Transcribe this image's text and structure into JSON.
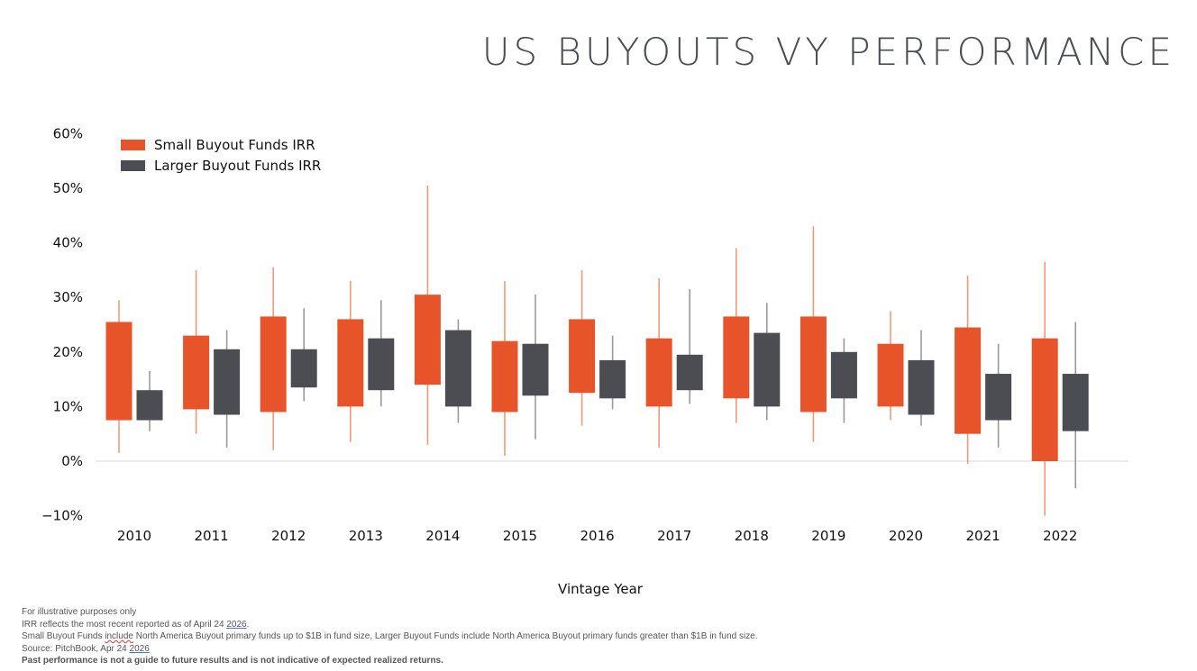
{
  "title": "US BUYOUTS VY PERFORMANCE",
  "colors": {
    "small": "#e8542a",
    "small_whisker": "#f09a7c",
    "large": "#4b4d52",
    "large_whisker": "#9a9a9a",
    "zero_line": "#d9d9d9"
  },
  "chart_data": {
    "type": "box",
    "xlabel": "Vintage Year",
    "ylabel": "",
    "ylim": [
      -10,
      60
    ],
    "yticks": [
      "−10%",
      "0%",
      "10%",
      "20%",
      "30%",
      "40%",
      "50%",
      "60%"
    ],
    "ytick_values": [
      -10,
      0,
      10,
      20,
      30,
      40,
      50,
      60
    ],
    "legend_position": "top-left",
    "categories": [
      "2010",
      "2011",
      "2012",
      "2013",
      "2014",
      "2015",
      "2016",
      "2017",
      "2018",
      "2019",
      "2020",
      "2021",
      "2022"
    ],
    "series": [
      {
        "name": "Small Buyout Funds IRR",
        "color_key": "small",
        "whisker_color_key": "small_whisker",
        "min": [
          1.5,
          5,
          2,
          3.5,
          3,
          1,
          6.5,
          2.5,
          7,
          3.5,
          7.5,
          -0.5,
          -10
        ],
        "box_low": [
          7.5,
          9.5,
          9,
          10,
          14,
          9,
          12.5,
          10,
          11.5,
          9,
          10,
          5,
          0
        ],
        "box_high": [
          25.5,
          23,
          26.5,
          26,
          30.5,
          22,
          26,
          22.5,
          26.5,
          26.5,
          21.5,
          24.5,
          22.5
        ],
        "max": [
          29.5,
          35,
          35.5,
          33,
          50.5,
          33,
          35,
          33.5,
          39,
          43,
          27.5,
          34,
          36.5
        ]
      },
      {
        "name": "Larger Buyout Funds IRR",
        "color_key": "large",
        "whisker_color_key": "large_whisker",
        "min": [
          5.5,
          2.5,
          11,
          10,
          7,
          4,
          9.5,
          10.5,
          7.5,
          7,
          6.5,
          2.5,
          -5
        ],
        "box_low": [
          7.5,
          8.5,
          13.5,
          13,
          10,
          12,
          11.5,
          13,
          10,
          11.5,
          8.5,
          7.5,
          5.5
        ],
        "box_high": [
          13,
          20.5,
          20.5,
          22.5,
          24,
          21.5,
          18.5,
          19.5,
          23.5,
          20,
          18.5,
          16,
          16
        ],
        "max": [
          16.5,
          24,
          28,
          29.5,
          26,
          30.5,
          23,
          31.5,
          29,
          22.5,
          24,
          21.5,
          25.5
        ]
      }
    ]
  },
  "footnotes": {
    "line1": "For illustrative purposes only",
    "line2_a": "IRR reflects the most recent reported as of April 24 ",
    "line2_b": "2026",
    "line2_c": ".",
    "line3_a": "Small Buyout Funds ",
    "line3_b": "include",
    "line3_c": " North America Buyout primary funds up to $1B in fund size, Larger Buyout Funds include North America Buyout primary funds greater than $1B in fund size.",
    "line4_a": "Source: PitchBook, Apr 24 ",
    "line4_b": "2026",
    "line5": "Past performance is not a guide to future results and is not indicative of expected realized returns."
  }
}
